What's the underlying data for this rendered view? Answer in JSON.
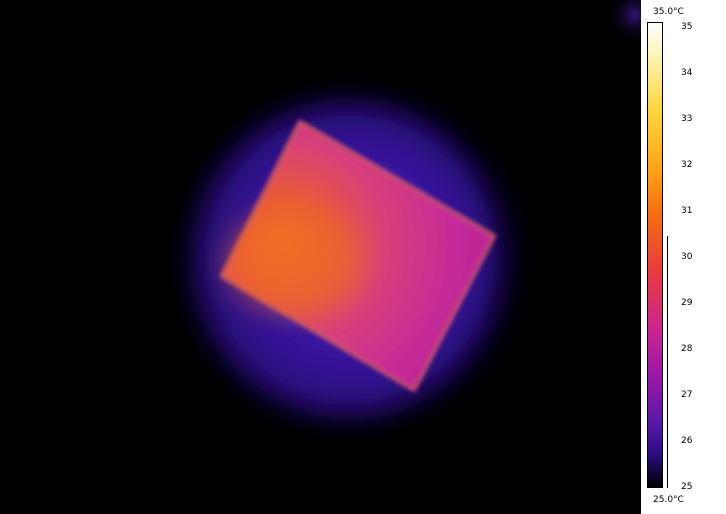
{
  "scale": {
    "max_label": "35.0°C",
    "min_label": "25.0°C",
    "ticks": [
      "35",
      "34",
      "33",
      "32",
      "31",
      "30",
      "29",
      "28",
      "27",
      "26",
      "25"
    ],
    "marker_range": [
      25,
      30.4
    ]
  },
  "palette": {
    "background": "#000000",
    "cold": "#1a0a6b",
    "mid": "#c0209a",
    "warm": "#e85a3a",
    "hot": "#ffd040"
  }
}
